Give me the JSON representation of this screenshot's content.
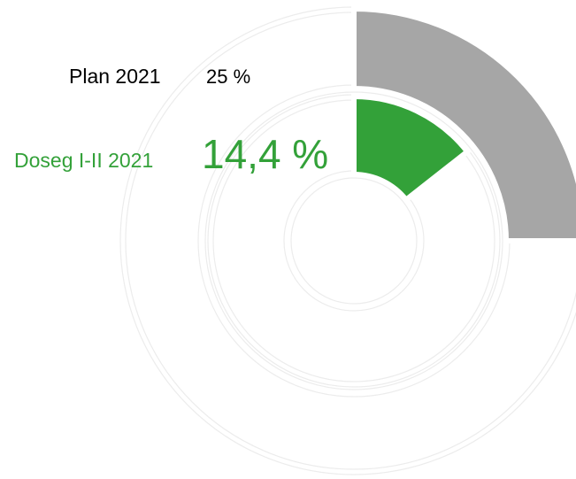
{
  "chart_data": {
    "type": "radial_bar",
    "categories": [
      "Plan 2021",
      "Doseg I-II 2021"
    ],
    "values": [
      25,
      14.4
    ],
    "value_labels": [
      "25 %",
      "14,4 %"
    ],
    "colors": [
      "#a6a6a6",
      "#33a139"
    ],
    "label_colors": [
      "#000000",
      "#33a139"
    ],
    "ylim": [
      0,
      100
    ]
  }
}
